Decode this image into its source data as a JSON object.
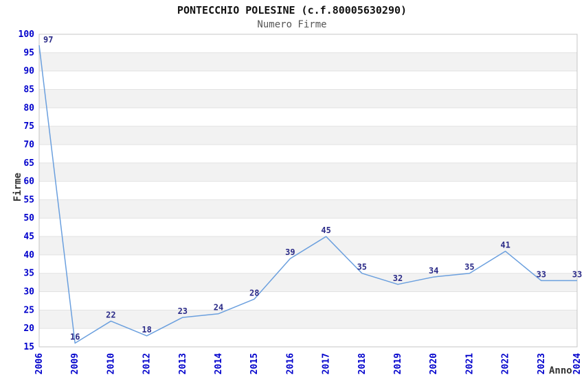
{
  "header": {
    "title": "PONTECCHIO POLESINE (c.f.80005630290)",
    "subtitle": "Numero Firme"
  },
  "chart_data": {
    "type": "line",
    "title": "PONTECCHIO POLESINE (c.f.80005630290)",
    "subtitle": "Numero Firme",
    "xlabel": "Anno",
    "ylabel": "Firme",
    "categories": [
      "2006",
      "2009",
      "2010",
      "2012",
      "2013",
      "2014",
      "2015",
      "2016",
      "2017",
      "2018",
      "2019",
      "2020",
      "2021",
      "2022",
      "2023",
      "2024"
    ],
    "values": [
      97,
      16,
      22,
      18,
      23,
      24,
      28,
      39,
      45,
      35,
      32,
      34,
      35,
      41,
      33,
      33
    ],
    "ylim": [
      15,
      100
    ],
    "ytick_step": 5,
    "grid": "horizontal-bands-alternating",
    "legend": "none",
    "point_labels_visible": true,
    "colors": {
      "line": "#6a9fde",
      "tick_label": "#0000cc",
      "point_label": "#2b2b88",
      "band_gray": "#f2f2f2",
      "band_white": "#ffffff",
      "gridline": "#e2e2e2",
      "plot_border": "#c4c4c4",
      "title": "#111111",
      "subtitle": "#555555",
      "axis_title": "#333333"
    }
  }
}
